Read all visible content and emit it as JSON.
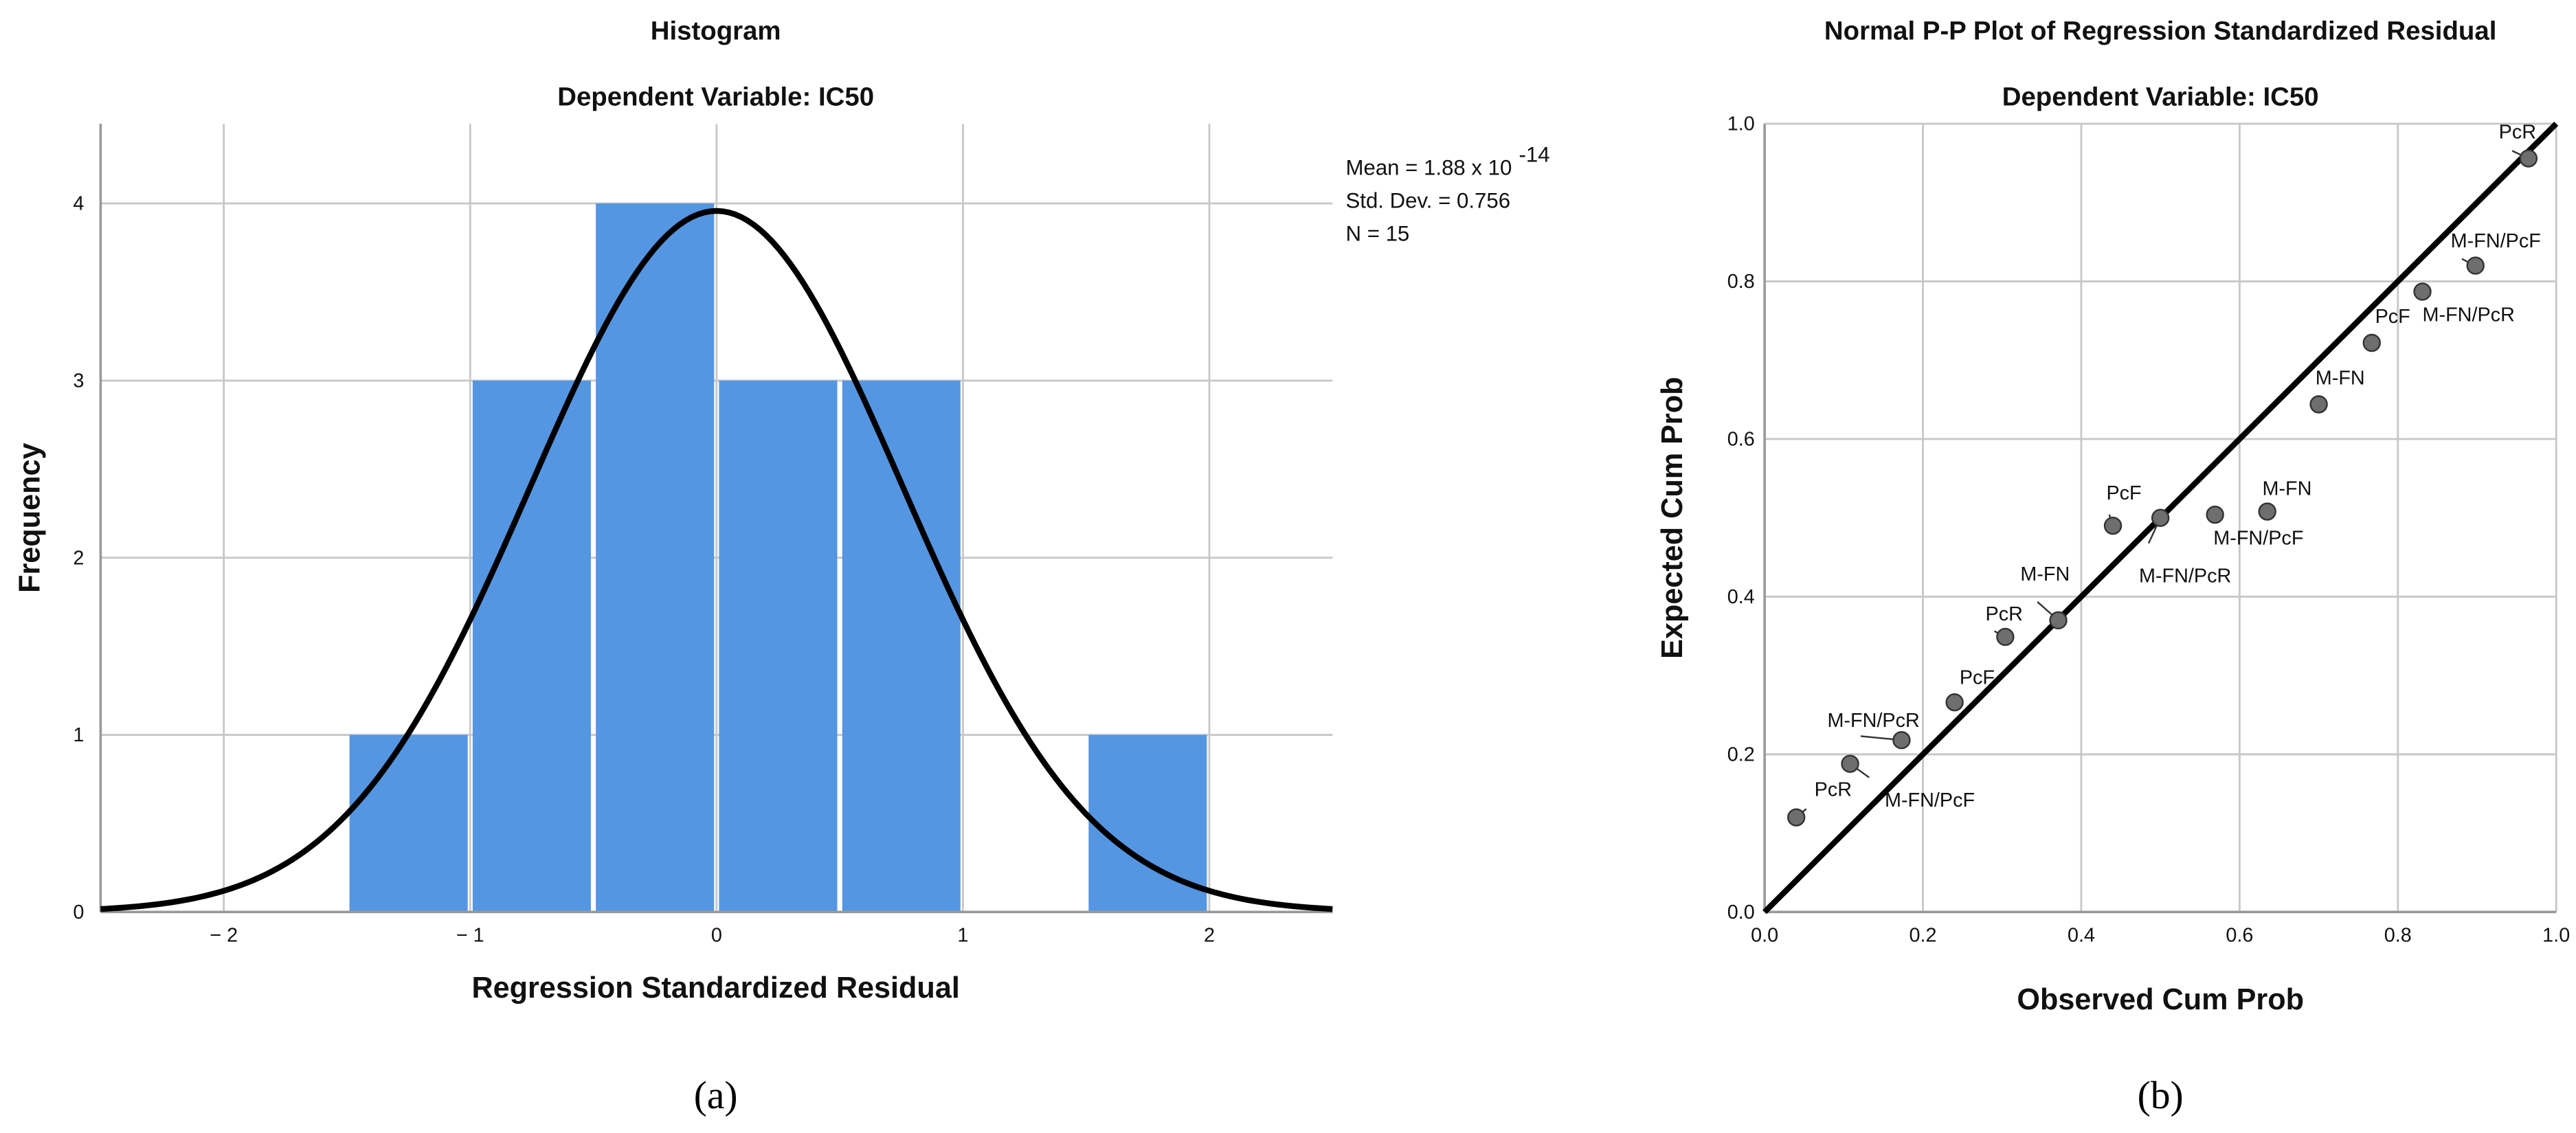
{
  "chart_data": [
    {
      "type": "bar",
      "title": "Histogram",
      "subtitle": "Dependent Variable: IC50",
      "xlabel": "Regression Standardized Residual",
      "ylabel": "Frequency",
      "xlim": [
        -2.5,
        2.5
      ],
      "ylim": [
        0,
        4.45
      ],
      "xticks": [
        -2,
        -1,
        0,
        1,
        2
      ],
      "xtick_labels": [
        "− 2",
        "− 1",
        "0",
        "1",
        "2"
      ],
      "yticks": [
        0,
        1,
        2,
        3,
        4
      ],
      "bins": [
        [
          -1.5,
          -1.0
        ],
        [
          -1.0,
          -0.5
        ],
        [
          -0.5,
          0.0
        ],
        [
          0.0,
          0.5
        ],
        [
          0.5,
          1.0
        ],
        [
          1.5,
          2.0
        ]
      ],
      "values": [
        1,
        3,
        4,
        3,
        3,
        1
      ],
      "bar_color": "#5596e3",
      "normal_curve": {
        "mean": 0,
        "sd": 0.756,
        "n": 15,
        "bin_width": 0.5
      },
      "stats": {
        "mean": "Mean = 1.88 x 10",
        "mean_exp": "-14",
        "sd": "Std. Dev. = 0.756",
        "n": "N = 15"
      },
      "grid": true,
      "caption": "(a)"
    },
    {
      "type": "scatter",
      "title": "Normal P-P Plot of Regression Standardized Residual",
      "subtitle": "Dependent Variable: IC50",
      "xlabel": "Observed Cum Prob",
      "ylabel": "Expected Cum Prob",
      "xlim": [
        0,
        1
      ],
      "ylim": [
        0,
        1
      ],
      "ticks": [
        "0.0",
        "0.2",
        "0.4",
        "0.6",
        "0.8",
        "1.0"
      ],
      "point_color": "#6e6e6e",
      "points": [
        {
          "x": 0.04,
          "y": 0.12,
          "label": "PcR"
        },
        {
          "x": 0.108,
          "y": 0.188,
          "label": "M-FN/PcF"
        },
        {
          "x": 0.173,
          "y": 0.218,
          "label": "M-FN/PcR"
        },
        {
          "x": 0.24,
          "y": 0.266,
          "label": "PcF"
        },
        {
          "x": 0.304,
          "y": 0.349,
          "label": "PcR"
        },
        {
          "x": 0.371,
          "y": 0.37,
          "label": "M-FN"
        },
        {
          "x": 0.44,
          "y": 0.49,
          "label": "PcF"
        },
        {
          "x": 0.5,
          "y": 0.5,
          "label": "M-FN/PcR"
        },
        {
          "x": 0.569,
          "y": 0.504,
          "label": "M-FN/PcF"
        },
        {
          "x": 0.635,
          "y": 0.508,
          "label": "M-FN"
        },
        {
          "x": 0.7,
          "y": 0.644,
          "label": "M-FN"
        },
        {
          "x": 0.767,
          "y": 0.722,
          "label": "PcF"
        },
        {
          "x": 0.831,
          "y": 0.787,
          "label": "M-FN/PcR"
        },
        {
          "x": 0.898,
          "y": 0.82,
          "label": "M-FN/PcF"
        },
        {
          "x": 0.965,
          "y": 0.956,
          "label": "PcR"
        }
      ],
      "reference_line": [
        [
          0,
          0
        ],
        [
          1,
          1
        ]
      ],
      "grid": true,
      "caption": "(b)"
    }
  ]
}
